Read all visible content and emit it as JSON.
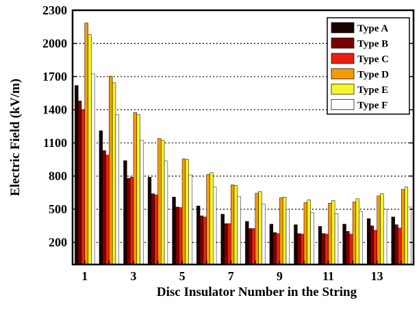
{
  "chart_data": {
    "type": "bar",
    "title": "",
    "xlabel": "Disc Insulator Number in the String",
    "ylabel": "Electric Field (kV/m)",
    "ylim": [
      0,
      2300
    ],
    "yticks": [
      200,
      500,
      800,
      1100,
      1400,
      1700,
      2000,
      2300
    ],
    "categories": [
      1,
      2,
      3,
      4,
      5,
      6,
      7,
      8,
      9,
      10,
      11,
      12,
      13,
      14
    ],
    "xtick_labels": [
      "1",
      "",
      "3",
      "",
      "5",
      "",
      "7",
      "",
      "9",
      "",
      "11",
      "",
      "13",
      ""
    ],
    "grid": "horizontal",
    "legend_position": "top-right",
    "series": [
      {
        "name": "Type A",
        "color": "#1a0000",
        "values": [
          1620,
          1210,
          940,
          790,
          610,
          530,
          455,
          390,
          365,
          360,
          345,
          365,
          415,
          430
        ]
      },
      {
        "name": "Type B",
        "color": "#7a0000",
        "values": [
          1480,
          1030,
          780,
          640,
          520,
          440,
          370,
          325,
          290,
          280,
          280,
          300,
          350,
          360
        ]
      },
      {
        "name": "Type C",
        "color": "#e82010",
        "values": [
          1400,
          990,
          790,
          630,
          515,
          430,
          370,
          325,
          280,
          275,
          275,
          275,
          310,
          330
        ]
      },
      {
        "name": "Type D",
        "color": "#f59a00",
        "values": [
          2185,
          1705,
          1375,
          1140,
          955,
          815,
          720,
          645,
          605,
          560,
          555,
          565,
          620,
          680
        ]
      },
      {
        "name": "Type E",
        "color": "#f5f528",
        "values": [
          2080,
          1645,
          1355,
          1125,
          950,
          830,
          715,
          660,
          610,
          585,
          580,
          595,
          640,
          700
        ]
      },
      {
        "name": "Type F",
        "color": "#ffffff",
        "values": [
          1725,
          1355,
          1125,
          935,
          810,
          700,
          615,
          545,
          500,
          470,
          460,
          480,
          500,
          520
        ]
      }
    ]
  }
}
